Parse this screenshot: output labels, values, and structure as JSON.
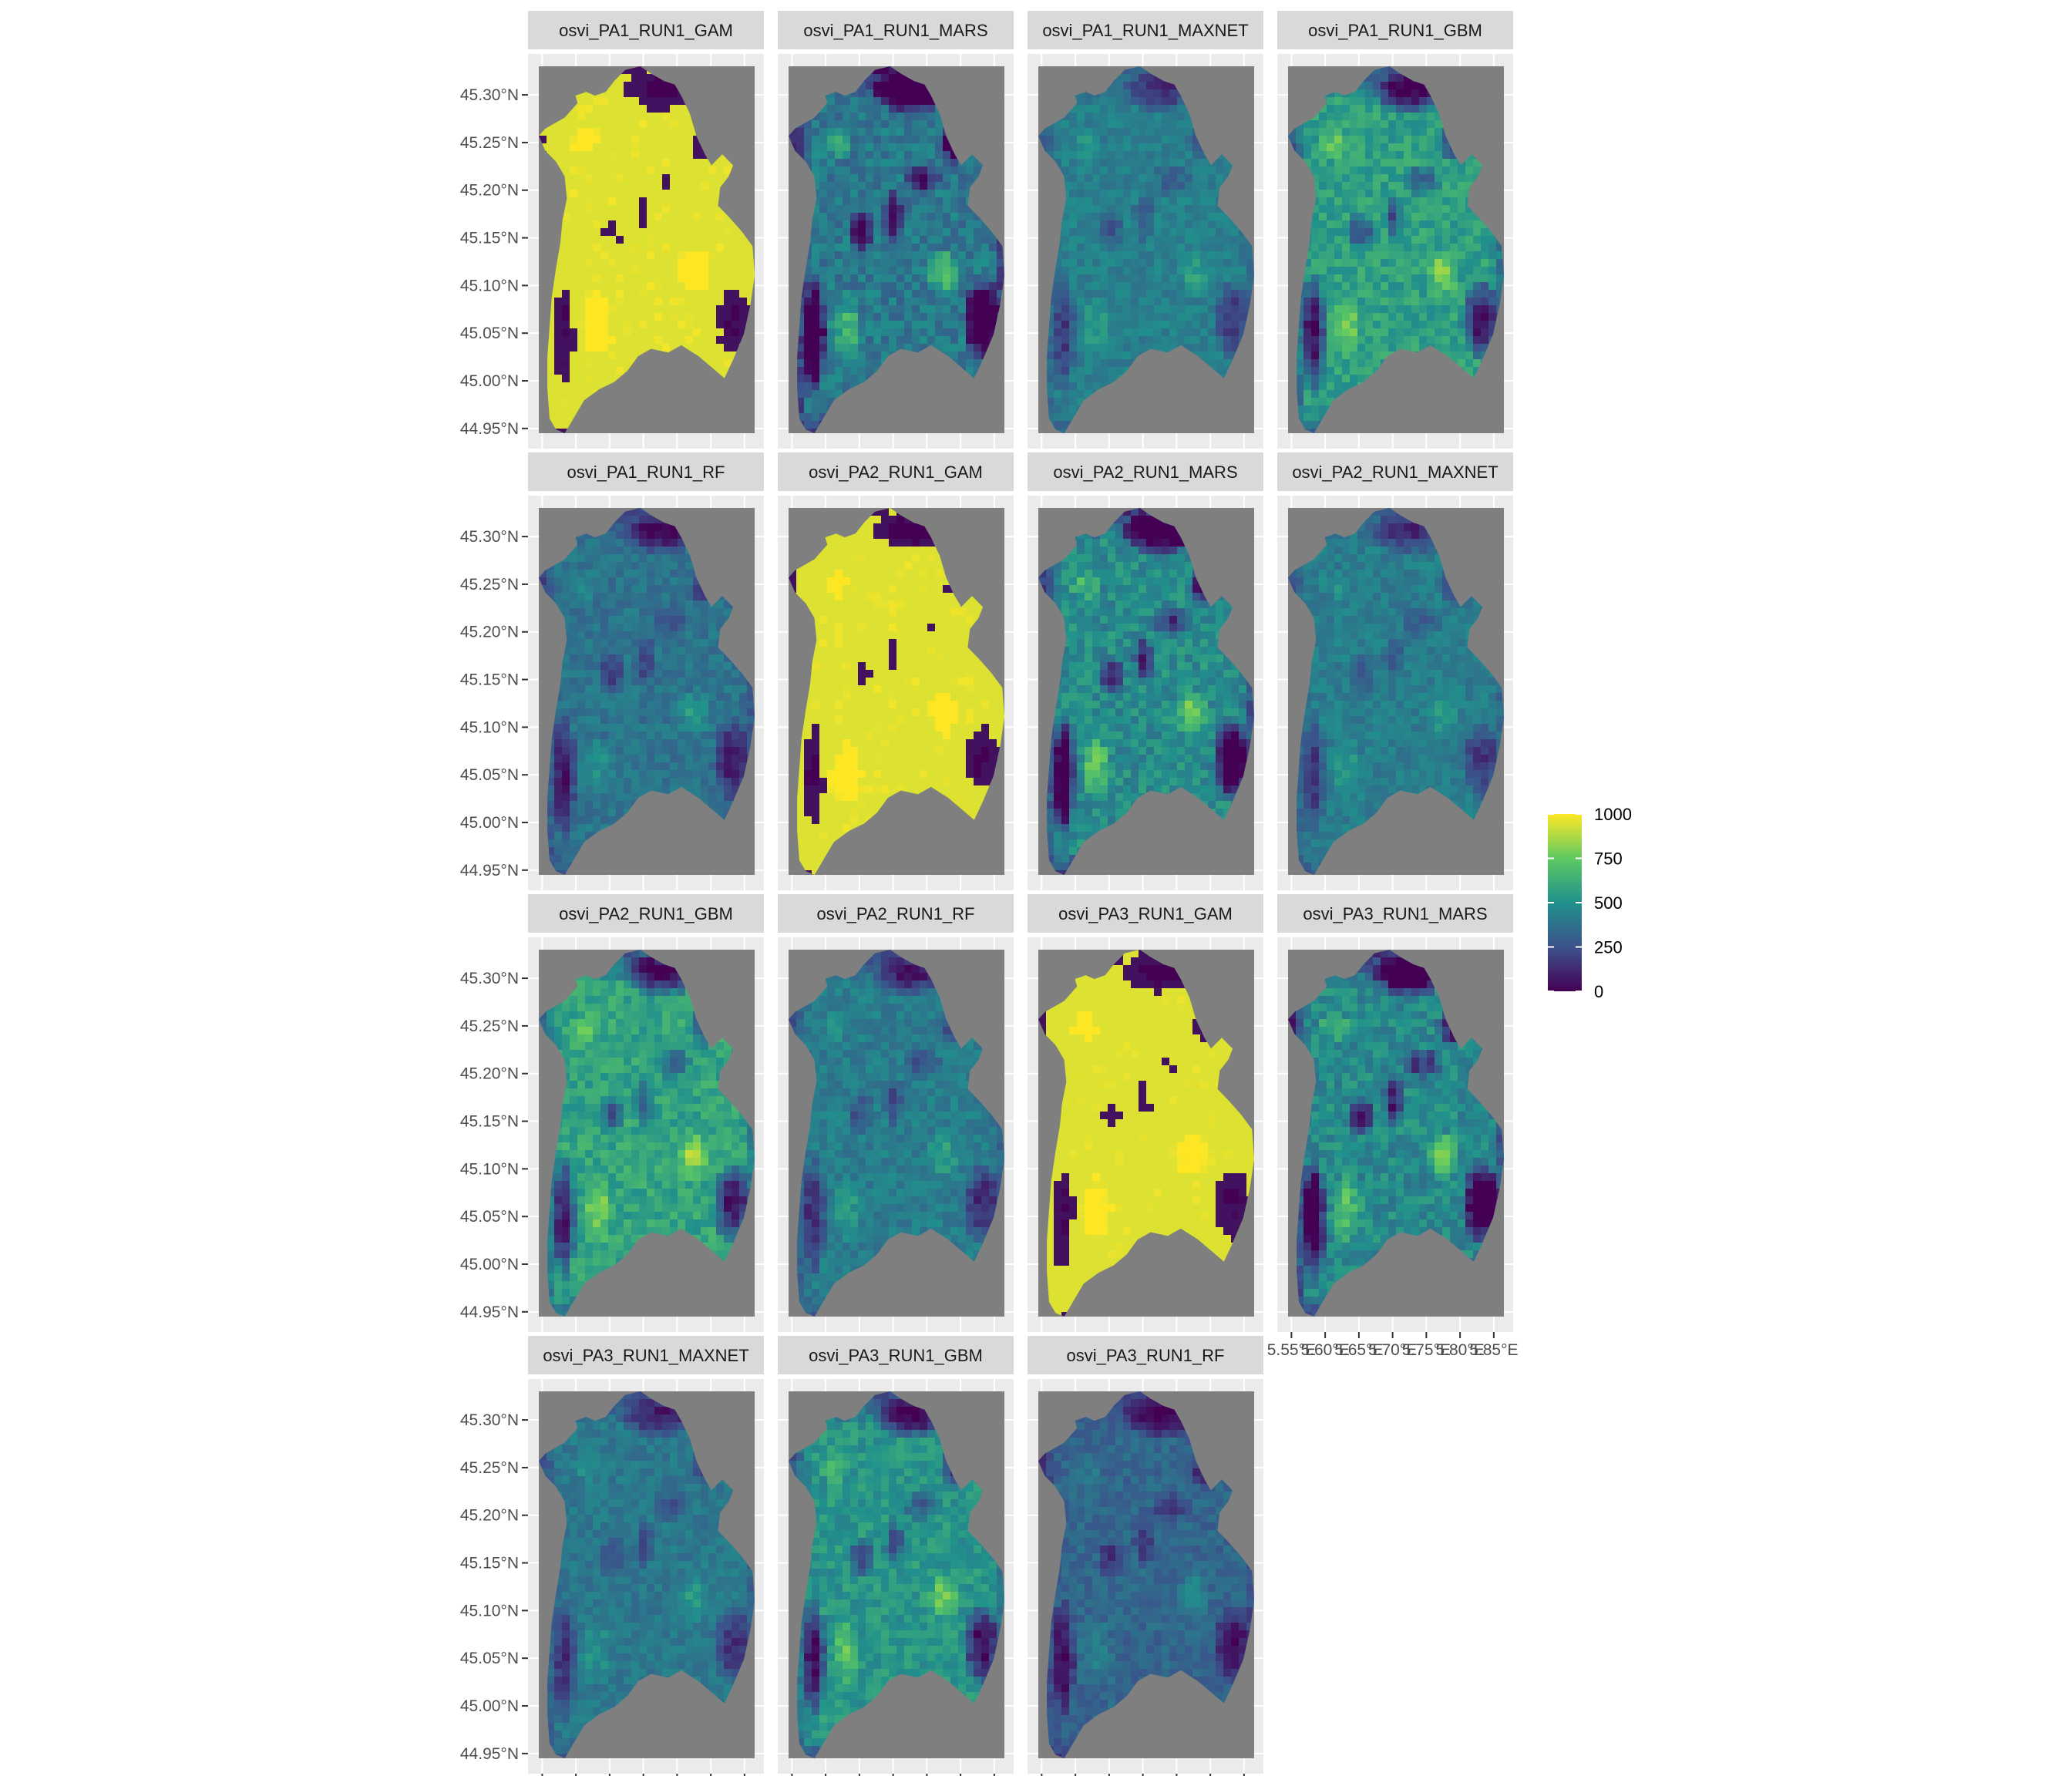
{
  "chart_data": {
    "type": "heatmap",
    "layout": {
      "ncol": 4,
      "nrow": 4
    },
    "colormap": "viridis",
    "colormap_stops": [
      "#440154",
      "#3b528b",
      "#21918c",
      "#5ec962",
      "#fde725"
    ],
    "background_color": "#7f7f7f",
    "panel_color": "#ebebeb",
    "strip_color": "#d9d9d9",
    "na_color": "#7f7f7f",
    "y_axis": {
      "ticks": [
        44.95,
        45.0,
        45.05,
        45.1,
        45.15,
        45.2,
        45.25,
        45.3
      ],
      "tick_labels": [
        "44.95°N",
        "45.00°N",
        "45.05°N",
        "45.10°N",
        "45.15°N",
        "45.20°N",
        "45.25°N",
        "45.30°N"
      ],
      "range": [
        44.945,
        45.33
      ]
    },
    "x_axis": {
      "ticks": [
        5.55,
        5.6,
        5.65,
        5.7,
        5.75,
        5.8,
        5.85
      ],
      "tick_labels": [
        "5.55°E",
        "5.60°E",
        "5.65°E",
        "5.70°E",
        "5.75°E",
        "5.80°E",
        "5.85°E"
      ],
      "range": [
        5.545,
        5.865
      ]
    },
    "legend": {
      "placement": "right",
      "breaks": [
        0,
        250,
        500,
        750,
        1000
      ],
      "labels": [
        "0",
        "250",
        "500",
        "750",
        "1000"
      ],
      "range": [
        0,
        1000
      ]
    },
    "panels": [
      {
        "name": "osvi_PA1_RUN1_GAM",
        "mean_value": 860,
        "contrast": 1.0
      },
      {
        "name": "osvi_PA1_RUN1_MARS",
        "mean_value": 400,
        "contrast": 0.7
      },
      {
        "name": "osvi_PA1_RUN1_MAXNET",
        "mean_value": 430,
        "contrast": 0.3
      },
      {
        "name": "osvi_PA1_RUN1_GBM",
        "mean_value": 560,
        "contrast": 0.6
      },
      {
        "name": "osvi_PA1_RUN1_RF",
        "mean_value": 380,
        "contrast": 0.35
      },
      {
        "name": "osvi_PA2_RUN1_GAM",
        "mean_value": 860,
        "contrast": 1.0
      },
      {
        "name": "osvi_PA2_RUN1_MARS",
        "mean_value": 480,
        "contrast": 0.7
      },
      {
        "name": "osvi_PA2_RUN1_MAXNET",
        "mean_value": 420,
        "contrast": 0.3
      },
      {
        "name": "osvi_PA2_RUN1_GBM",
        "mean_value": 580,
        "contrast": 0.6
      },
      {
        "name": "osvi_PA2_RUN1_RF",
        "mean_value": 420,
        "contrast": 0.35
      },
      {
        "name": "osvi_PA3_RUN1_GAM",
        "mean_value": 850,
        "contrast": 1.0
      },
      {
        "name": "osvi_PA3_RUN1_MARS",
        "mean_value": 470,
        "contrast": 0.7
      },
      {
        "name": "osvi_PA3_RUN1_MAXNET",
        "mean_value": 400,
        "contrast": 0.3
      },
      {
        "name": "osvi_PA3_RUN1_GBM",
        "mean_value": 520,
        "contrast": 0.55
      },
      {
        "name": "osvi_PA3_RUN1_RF",
        "mean_value": 330,
        "contrast": 0.35
      }
    ]
  }
}
